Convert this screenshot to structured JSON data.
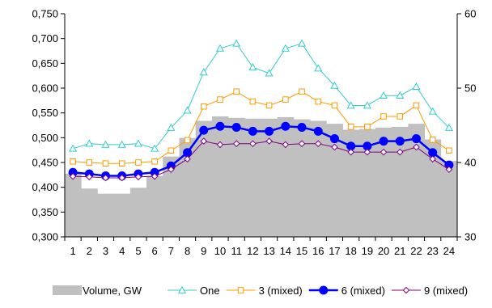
{
  "chart_data": {
    "type": "line",
    "title": "",
    "xlabel": "",
    "ylabel": "",
    "x": [
      1,
      2,
      3,
      4,
      5,
      6,
      7,
      8,
      9,
      10,
      11,
      12,
      13,
      14,
      15,
      16,
      17,
      18,
      19,
      20,
      21,
      22,
      23,
      24
    ],
    "x_tick_labels": [
      "1",
      "2",
      "3",
      "4",
      "5",
      "6",
      "7",
      "8",
      "9",
      "10",
      "11",
      "12",
      "13",
      "14",
      "15",
      "16",
      "17",
      "18",
      "19",
      "20",
      "21",
      "22",
      "23",
      "24"
    ],
    "y_left": {
      "min": 0.3,
      "max": 0.75,
      "ticks": [
        "0,300",
        "0,350",
        "0,400",
        "0,450",
        "0,500",
        "0,550",
        "0,600",
        "0,650",
        "0,700",
        "0,750"
      ]
    },
    "y_right": {
      "min": 30,
      "max": 60,
      "ticks": [
        "30",
        "40",
        "50",
        "60"
      ]
    },
    "grid": false,
    "legend_position": "bottom",
    "volume": {
      "name": "Volume, GW",
      "axis": "right",
      "color": "#c0c0c0",
      "values": [
        38.5,
        36.5,
        35.8,
        35.8,
        36.6,
        38.2,
        40.8,
        43.3,
        45.6,
        46.2,
        46.0,
        45.9,
        45.9,
        46.1,
        45.8,
        45.6,
        45.2,
        44.4,
        44.5,
        44.7,
        44.8,
        45.2,
        43.1,
        40.2
      ]
    },
    "series": [
      {
        "name": "One",
        "axis": "left",
        "color": "#33cccc",
        "marker": "triangle",
        "values": [
          0.478,
          0.488,
          0.486,
          0.486,
          0.488,
          0.478,
          0.52,
          0.555,
          0.632,
          0.68,
          0.69,
          0.642,
          0.63,
          0.68,
          0.69,
          0.64,
          0.605,
          0.565,
          0.565,
          0.585,
          0.585,
          0.603,
          0.553,
          0.52
        ]
      },
      {
        "name": "3 (mixed)",
        "axis": "left",
        "color": "#ff9900",
        "marker": "square",
        "values": [
          0.452,
          0.45,
          0.448,
          0.448,
          0.45,
          0.452,
          0.474,
          0.495,
          0.563,
          0.577,
          0.593,
          0.573,
          0.565,
          0.577,
          0.593,
          0.573,
          0.565,
          0.522,
          0.522,
          0.543,
          0.543,
          0.565,
          0.496,
          0.474
        ]
      },
      {
        "name": "6 (mixed)",
        "axis": "left",
        "color": "#0000ff",
        "marker": "circle",
        "values": [
          0.43,
          0.427,
          0.423,
          0.423,
          0.427,
          0.43,
          0.443,
          0.47,
          0.515,
          0.523,
          0.521,
          0.513,
          0.513,
          0.523,
          0.521,
          0.513,
          0.498,
          0.483,
          0.483,
          0.493,
          0.493,
          0.498,
          0.47,
          0.445
        ]
      },
      {
        "name": "9 (mixed)",
        "axis": "left",
        "color": "#800080",
        "marker": "diamond",
        "values": [
          0.422,
          0.421,
          0.419,
          0.419,
          0.421,
          0.422,
          0.436,
          0.457,
          0.493,
          0.486,
          0.488,
          0.488,
          0.493,
          0.486,
          0.488,
          0.488,
          0.481,
          0.471,
          0.471,
          0.471,
          0.471,
          0.481,
          0.457,
          0.436
        ]
      }
    ]
  }
}
